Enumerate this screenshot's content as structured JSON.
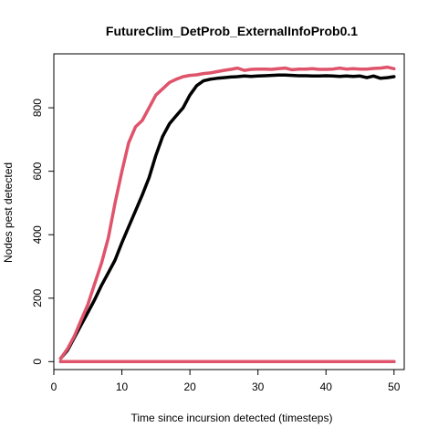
{
  "chart_data": {
    "type": "line",
    "title": "FutureClim_DetProb_ExternalInfoProb0.1",
    "xlabel": "Time since incursion detected (timesteps)",
    "ylabel": "Nodes pest detected",
    "xlim": [
      0,
      51.5
    ],
    "ylim": [
      -25,
      970
    ],
    "xticks": [
      0,
      10,
      20,
      30,
      40,
      50
    ],
    "yticks": [
      0,
      200,
      400,
      600,
      800
    ],
    "grid": false,
    "legend": "none",
    "series": [
      {
        "color": "#000000",
        "x": [
          1,
          2,
          3,
          4,
          5,
          6,
          7,
          8,
          9,
          10,
          11,
          12,
          13,
          14,
          15,
          16,
          17,
          18,
          19,
          20,
          21,
          22,
          23,
          24,
          25,
          26,
          27,
          28,
          29,
          30,
          31,
          32,
          33,
          34,
          35,
          36,
          37,
          38,
          39,
          40,
          41,
          42,
          43,
          44,
          45,
          46,
          47,
          48,
          49,
          50
        ],
        "y": [
          10,
          35,
          75,
          115,
          155,
          195,
          240,
          280,
          320,
          375,
          425,
          475,
          525,
          580,
          650,
          710,
          750,
          775,
          800,
          840,
          870,
          885,
          890,
          893,
          895,
          897,
          898,
          900,
          899,
          900,
          901,
          902,
          903,
          903,
          902,
          901,
          901,
          900,
          900,
          901,
          900,
          899,
          900,
          899,
          900,
          895,
          900,
          893,
          895,
          898
        ]
      },
      {
        "color": "#DF536B",
        "x": [
          1,
          2,
          3,
          4,
          5,
          6,
          7,
          8,
          9,
          10,
          11,
          12,
          13,
          14,
          15,
          16,
          17,
          18,
          19,
          20,
          21,
          22,
          23,
          24,
          25,
          26,
          27,
          28,
          29,
          30,
          31,
          32,
          33,
          34,
          35,
          36,
          37,
          38,
          39,
          40,
          41,
          42,
          43,
          44,
          45,
          46,
          47,
          48,
          49,
          50
        ],
        "y": [
          10,
          40,
          80,
          130,
          180,
          245,
          310,
          390,
          500,
          600,
          690,
          740,
          760,
          800,
          840,
          860,
          880,
          890,
          898,
          902,
          904,
          908,
          910,
          914,
          918,
          921,
          925,
          918,
          921,
          922,
          922,
          921,
          923,
          925,
          920,
          922,
          922,
          923,
          921,
          921,
          922,
          925,
          922,
          923,
          922,
          922,
          924,
          925,
          928,
          923
        ]
      },
      {
        "color": "#000000",
        "x": [
          1,
          50
        ],
        "y": [
          0,
          0
        ]
      },
      {
        "color": "#DF536B",
        "x": [
          1,
          50
        ],
        "y": [
          0,
          0
        ]
      }
    ]
  }
}
